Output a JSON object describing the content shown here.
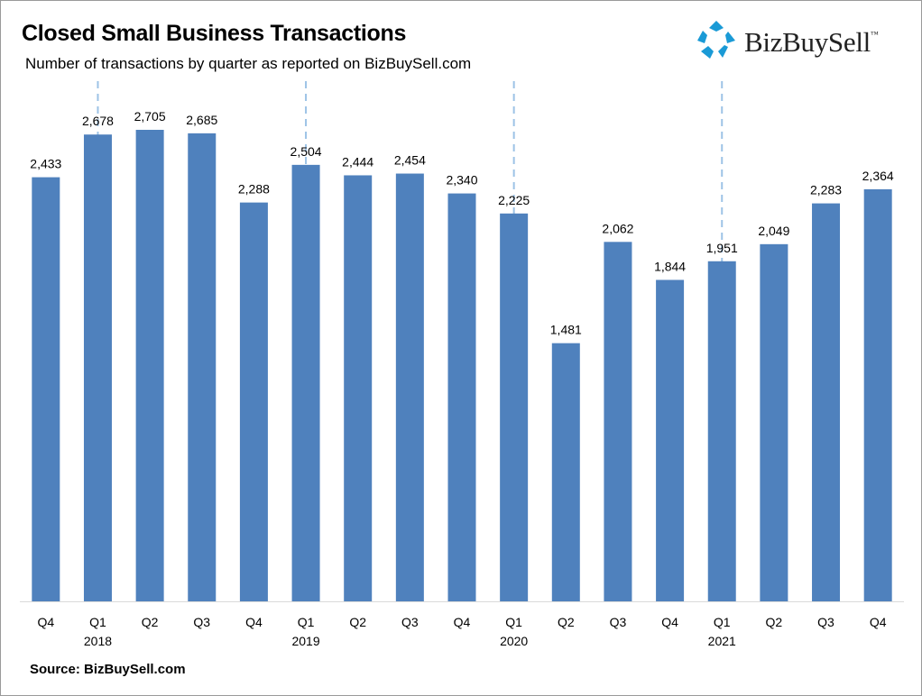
{
  "header": {
    "title": "Closed Small Business Transactions",
    "subtitle": "Number of transactions by quarter as reported on BizBuySell.com"
  },
  "logo": {
    "text": "BizBuySell",
    "mark": "™",
    "icon": "star-pentagon-icon",
    "icon_color": "#1a9ad6"
  },
  "footer": {
    "source": "Source: BizBuySell.com"
  },
  "colors": {
    "bar": "#4f81bd",
    "separator": "#9dc3e6",
    "axis": "#d9d9d9"
  },
  "chart_data": {
    "type": "bar",
    "title": "Closed Small Business Transactions",
    "subtitle": "Number of transactions by quarter as reported on BizBuySell.com",
    "xlabel": "",
    "ylabel": "",
    "ylim": [
      0,
      2705
    ],
    "grid": false,
    "legend": "none",
    "categories": [
      "Q4",
      "Q1",
      "Q2",
      "Q3",
      "Q4",
      "Q1",
      "Q2",
      "Q3",
      "Q4",
      "Q1",
      "Q2",
      "Q3",
      "Q4",
      "Q1",
      "Q2",
      "Q3",
      "Q4"
    ],
    "years": [
      "",
      "2018",
      "",
      "",
      "",
      "2019",
      "",
      "",
      "",
      "2020",
      "",
      "",
      "",
      "2021",
      "",
      "",
      ""
    ],
    "values": [
      2433,
      2678,
      2705,
      2685,
      2288,
      2504,
      2444,
      2454,
      2340,
      2225,
      1481,
      2062,
      1844,
      1951,
      2049,
      2283,
      2364
    ],
    "value_labels": [
      "2,433",
      "2,678",
      "2,705",
      "2,685",
      "2,288",
      "2,504",
      "2,444",
      "2,454",
      "2,340",
      "2,225",
      "1,481",
      "2,062",
      "1,844",
      "1,951",
      "2,049",
      "2,283",
      "2,364"
    ],
    "year_separators_at": [
      1,
      5,
      9,
      13
    ]
  }
}
